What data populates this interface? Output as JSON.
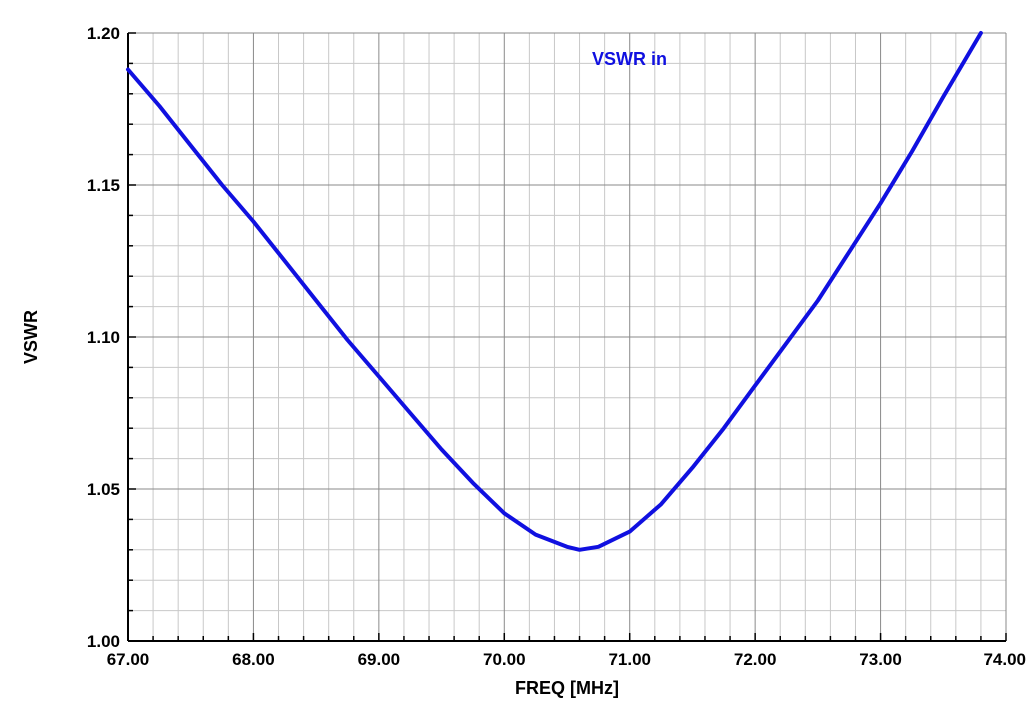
{
  "chart_data": {
    "type": "line",
    "title": "",
    "xlabel": "FREQ [MHz]",
    "ylabel": "VSWR",
    "xlim": [
      67.0,
      74.0
    ],
    "ylim": [
      1.0,
      1.2
    ],
    "x_ticks": [
      "67.00",
      "68.00",
      "69.00",
      "70.00",
      "71.00",
      "72.00",
      "73.00",
      "74.00"
    ],
    "y_ticks": [
      "1.00",
      "1.05",
      "1.10",
      "1.15",
      "1.20"
    ],
    "grid": true,
    "legend_position": "top-center",
    "series": [
      {
        "name": "VSWR in",
        "color": "#1010e0",
        "x": [
          67.0,
          67.25,
          67.5,
          67.75,
          68.0,
          68.25,
          68.5,
          68.75,
          69.0,
          69.25,
          69.5,
          69.75,
          70.0,
          70.25,
          70.5,
          70.6,
          70.75,
          71.0,
          71.25,
          71.5,
          71.75,
          72.0,
          72.25,
          72.5,
          72.75,
          73.0,
          73.25,
          73.5,
          73.8
        ],
        "values": [
          1.188,
          1.176,
          1.163,
          1.15,
          1.138,
          1.125,
          1.112,
          1.099,
          1.087,
          1.075,
          1.063,
          1.052,
          1.042,
          1.035,
          1.031,
          1.03,
          1.031,
          1.036,
          1.045,
          1.057,
          1.07,
          1.084,
          1.098,
          1.112,
          1.128,
          1.144,
          1.161,
          1.179,
          1.2
        ]
      }
    ]
  }
}
